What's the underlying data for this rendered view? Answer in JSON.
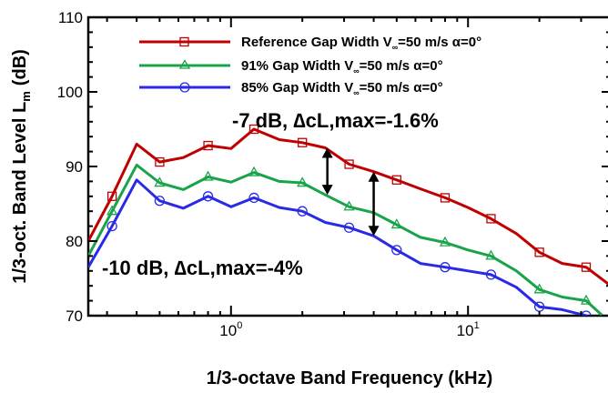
{
  "chart_data": {
    "type": "line",
    "title": "",
    "xlabel": "1/3-octave Band Frequency (kHz)",
    "ylabel_main": "1/3-oct. Band Level L",
    "ylabel_sub": "m",
    "ylabel_unit": "(dB)",
    "xscale": "log",
    "xlim": [
      0.25,
      40
    ],
    "ylim": [
      70,
      110
    ],
    "grid": false,
    "legend_position": "top",
    "x_tick_labels": [
      {
        "base": "10",
        "exp": "0",
        "value": 1
      },
      {
        "base": "10",
        "exp": "1",
        "value": 10
      }
    ],
    "y_ticks": [
      70,
      80,
      90,
      100,
      110
    ],
    "x": [
      0.25,
      0.315,
      0.4,
      0.5,
      0.63,
      0.8,
      1.0,
      1.25,
      1.6,
      2.0,
      2.5,
      3.15,
      4.0,
      5.0,
      6.3,
      8.0,
      10.0,
      12.5,
      16.0,
      20.0,
      25.0,
      31.5,
      40.0
    ],
    "series": [
      {
        "name_main": "Reference Gap Width  V",
        "name_sub": "∞",
        "name_rest": "=50 m/s  α=0°",
        "color": "#c00000",
        "marker": "square",
        "values": [
          80.0,
          86.0,
          93.0,
          90.6,
          91.2,
          92.8,
          92.4,
          95.0,
          93.6,
          93.2,
          92.5,
          90.3,
          89.3,
          88.2,
          87.0,
          85.8,
          84.5,
          83.0,
          81.0,
          78.5,
          77.0,
          76.5,
          74.0
        ]
      },
      {
        "name_main": "91% Gap Width  V",
        "name_sub": "∞",
        "name_rest": "=50 m/s  α=0°",
        "color": "#1aa44a",
        "marker": "triangle",
        "values": [
          78.0,
          84.0,
          90.2,
          87.8,
          86.9,
          88.6,
          87.9,
          89.2,
          88.0,
          87.8,
          86.2,
          84.6,
          83.8,
          82.2,
          80.5,
          79.8,
          78.8,
          78.0,
          76.0,
          73.5,
          72.5,
          72.0,
          69.0
        ]
      },
      {
        "name_main": "85% Gap Width  V",
        "name_sub": "∞",
        "name_rest": "=50 m/s  α=0°",
        "color": "#2a2ae6",
        "marker": "circle",
        "values": [
          76.5,
          82.0,
          88.2,
          85.4,
          84.4,
          86.0,
          84.6,
          85.8,
          84.5,
          84.0,
          82.5,
          81.8,
          80.7,
          78.8,
          77.0,
          76.5,
          76.0,
          75.5,
          73.8,
          71.2,
          70.8,
          70.0,
          68.0
        ]
      }
    ],
    "annotations": [
      {
        "text": "-7 dB, ∆cL,max=-1.6%"
      },
      {
        "text": "-10 dB, ∆cL,max=-4%"
      }
    ],
    "arrows": [
      {
        "x": 2.55,
        "y_from": 92.5,
        "y_to": 86.2
      },
      {
        "x": 4.0,
        "y_from": 89.3,
        "y_to": 80.7
      }
    ]
  }
}
